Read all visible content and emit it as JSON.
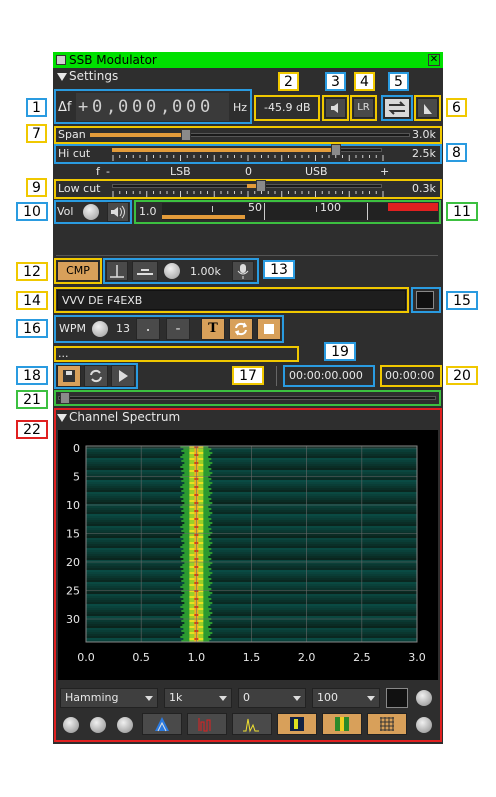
{
  "window": {
    "title": "SSB Modulator"
  },
  "settings": {
    "section_label": "Settings",
    "df_label": "Δf",
    "freq_sign": "+",
    "freq_digits": [
      "0",
      ",",
      "0",
      "0",
      "0",
      ",",
      "0",
      "0",
      "0"
    ],
    "freq_unit": "Hz",
    "power_readout": "-45.9 dB",
    "lr_label": "LR"
  },
  "span": {
    "label": "Span",
    "value": "3.0k",
    "fraction": 0.3
  },
  "hicut": {
    "label": "Hi cut",
    "value": "2.5k",
    "fraction": 0.83
  },
  "scale": {
    "labels": [
      "f",
      "-",
      "LSB",
      "0",
      "USB",
      "+"
    ]
  },
  "lowcut": {
    "label": "Low cut",
    "value": "0.3k",
    "fraction": 0.55
  },
  "volume": {
    "label": "Vol",
    "gain": "1.0",
    "meter_ticks": [
      "50",
      "100"
    ],
    "level_fraction": 0.3,
    "peak_fraction": 0.82
  },
  "compressor": {
    "label": "CMP",
    "tone_freq": "1.00k"
  },
  "cw": {
    "text": "VVV DE F4EXB",
    "wpm_label": "WPM",
    "wpm": "13",
    "dot": ".",
    "dash": "-",
    "text_button": "T"
  },
  "file": {
    "name": "...",
    "position": "00:00:00.000",
    "length": "00:00:00"
  },
  "badges": [
    "1",
    "2",
    "3",
    "4",
    "5",
    "6",
    "7",
    "8",
    "9",
    "10",
    "11",
    "12",
    "13",
    "14",
    "15",
    "16",
    "17",
    "18",
    "19",
    "20",
    "21",
    "22"
  ],
  "spectrum": {
    "section_label": "Channel Spectrum",
    "y_ticks": [
      "0",
      "5",
      "10",
      "15",
      "20",
      "25",
      "30"
    ],
    "x_ticks": [
      "0.0",
      "0.5",
      "1.0",
      "1.5",
      "2.0",
      "2.5",
      "3.0"
    ],
    "window_fn": "Hamming",
    "fft_size": "1k",
    "ref_level": "0",
    "range": "100"
  },
  "colors": {
    "yellow": "#f0c800",
    "blue": "#2a9be0",
    "green": "#3cc040",
    "red": "#e02020",
    "title": "#00e000",
    "accent": "#e39b3a"
  }
}
